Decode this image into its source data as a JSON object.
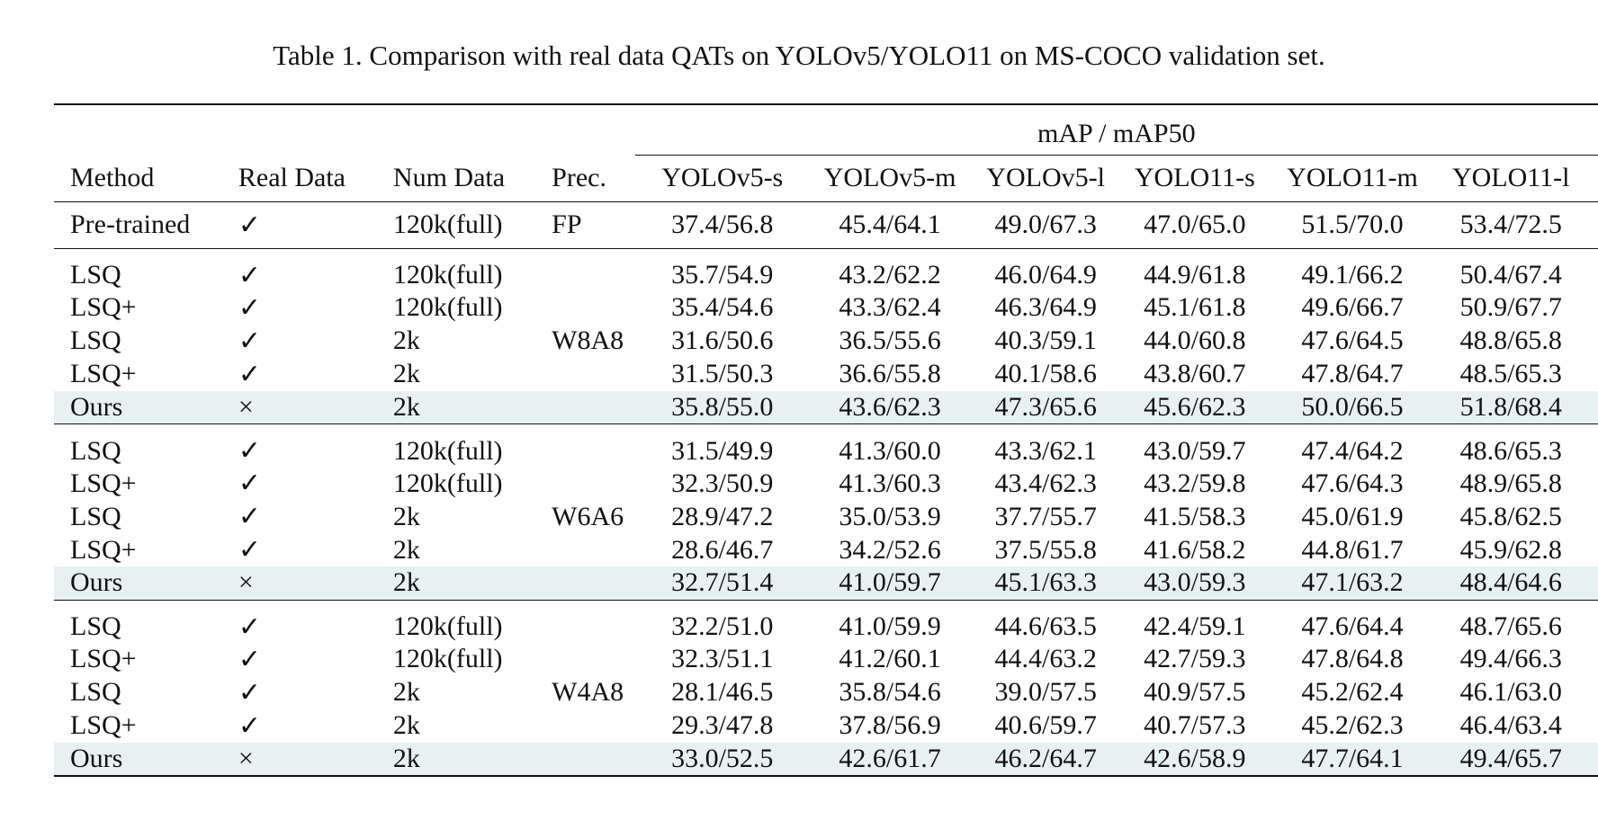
{
  "caption": "Table 1. Comparison with real data QATs on YOLOv5/YOLO11 on MS-COCO validation set.",
  "header": {
    "group_label": "mAP / mAP50",
    "columns": [
      "Method",
      "Real Data",
      "Num Data",
      "Prec.",
      "YOLOv5-s",
      "YOLOv5-m",
      "YOLOv5-l",
      "YOLO11-s",
      "YOLO11-m",
      "YOLO11-l"
    ]
  },
  "pretrained": {
    "method": "Pre-trained",
    "real": "✓",
    "num": "120k(full)",
    "prec": "FP",
    "values": [
      "37.4/56.8",
      "45.4/64.1",
      "49.0/67.3",
      "47.0/65.0",
      "51.5/70.0",
      "53.4/72.5"
    ]
  },
  "blocks": [
    {
      "prec": "W8A8",
      "rows": [
        {
          "method": "LSQ",
          "real": "✓",
          "num": "120k(full)",
          "values": [
            "35.7/54.9",
            "43.2/62.2",
            "46.0/64.9",
            "44.9/61.8",
            "49.1/66.2",
            "50.4/67.4"
          ]
        },
        {
          "method": "LSQ+",
          "real": "✓",
          "num": "120k(full)",
          "values": [
            "35.4/54.6",
            "43.3/62.4",
            "46.3/64.9",
            "45.1/61.8",
            "49.6/66.7",
            "50.9/67.7"
          ]
        },
        {
          "method": "LSQ",
          "real": "✓",
          "num": "2k",
          "values": [
            "31.6/50.6",
            "36.5/55.6",
            "40.3/59.1",
            "44.0/60.8",
            "47.6/64.5",
            "48.8/65.8"
          ]
        },
        {
          "method": "LSQ+",
          "real": "✓",
          "num": "2k",
          "values": [
            "31.5/50.3",
            "36.6/55.8",
            "40.1/58.6",
            "43.8/60.7",
            "47.8/64.7",
            "48.5/65.3"
          ]
        },
        {
          "method": "Ours",
          "real": "×",
          "num": "2k",
          "values": [
            "35.8/55.0",
            "43.6/62.3",
            "47.3/65.6",
            "45.6/62.3",
            "50.0/66.5",
            "51.8/68.4"
          ]
        }
      ]
    },
    {
      "prec": "W6A6",
      "rows": [
        {
          "method": "LSQ",
          "real": "✓",
          "num": "120k(full)",
          "values": [
            "31.5/49.9",
            "41.3/60.0",
            "43.3/62.1",
            "43.0/59.7",
            "47.4/64.2",
            "48.6/65.3"
          ]
        },
        {
          "method": "LSQ+",
          "real": "✓",
          "num": "120k(full)",
          "values": [
            "32.3/50.9",
            "41.3/60.3",
            "43.4/62.3",
            "43.2/59.8",
            "47.6/64.3",
            "48.9/65.8"
          ]
        },
        {
          "method": "LSQ",
          "real": "✓",
          "num": "2k",
          "values": [
            "28.9/47.2",
            "35.0/53.9",
            "37.7/55.7",
            "41.5/58.3",
            "45.0/61.9",
            "45.8/62.5"
          ]
        },
        {
          "method": "LSQ+",
          "real": "✓",
          "num": "2k",
          "values": [
            "28.6/46.7",
            "34.2/52.6",
            "37.5/55.8",
            "41.6/58.2",
            "44.8/61.7",
            "45.9/62.8"
          ]
        },
        {
          "method": "Ours",
          "real": "×",
          "num": "2k",
          "values": [
            "32.7/51.4",
            "41.0/59.7",
            "45.1/63.3",
            "43.0/59.3",
            "47.1/63.2",
            "48.4/64.6"
          ]
        }
      ]
    },
    {
      "prec": "W4A8",
      "rows": [
        {
          "method": "LSQ",
          "real": "✓",
          "num": "120k(full)",
          "values": [
            "32.2/51.0",
            "41.0/59.9",
            "44.6/63.5",
            "42.4/59.1",
            "47.6/64.4",
            "48.7/65.6"
          ]
        },
        {
          "method": "LSQ+",
          "real": "✓",
          "num": "120k(full)",
          "values": [
            "32.3/51.1",
            "41.2/60.1",
            "44.4/63.2",
            "42.7/59.3",
            "47.8/64.8",
            "49.4/66.3"
          ]
        },
        {
          "method": "LSQ",
          "real": "✓",
          "num": "2k",
          "values": [
            "28.1/46.5",
            "35.8/54.6",
            "39.0/57.5",
            "40.9/57.5",
            "45.2/62.4",
            "46.1/63.0"
          ]
        },
        {
          "method": "LSQ+",
          "real": "✓",
          "num": "2k",
          "values": [
            "29.3/47.8",
            "37.8/56.9",
            "40.6/59.7",
            "40.7/57.3",
            "45.2/62.3",
            "46.4/63.4"
          ]
        },
        {
          "method": "Ours",
          "real": "×",
          "num": "2k",
          "values": [
            "33.0/52.5",
            "42.6/61.7",
            "46.2/64.7",
            "42.6/58.9",
            "47.7/64.1",
            "49.4/65.7"
          ]
        }
      ]
    }
  ]
}
